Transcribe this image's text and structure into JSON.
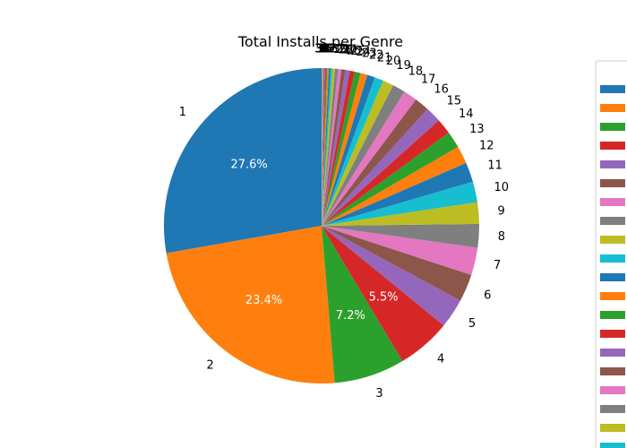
{
  "chart_data": {
    "type": "pie",
    "title": "Total Installs per Genre",
    "palette": [
      "#1f77b4",
      "#ff7f0e",
      "#2ca02c",
      "#d62728",
      "#9467bd",
      "#8c564b",
      "#e377c2",
      "#7f7f7f",
      "#bcbd22",
      "#17becf"
    ],
    "start_angle_deg": 90,
    "counterclockwise": true,
    "legend_location": "right",
    "slices": [
      {
        "label": "1",
        "percent": 27.6,
        "display": "27.6%"
      },
      {
        "label": "2",
        "percent": 23.4,
        "display": "23.4%"
      },
      {
        "label": "3",
        "percent": 7.2,
        "display": "7.2%"
      },
      {
        "label": "4",
        "percent": 5.5,
        "display": "5.5%"
      },
      {
        "label": "5",
        "percent": 3.0
      },
      {
        "label": "6",
        "percent": 2.8
      },
      {
        "label": "7",
        "percent": 2.8
      },
      {
        "label": "8",
        "percent": 2.4
      },
      {
        "label": "9",
        "percent": 2.2
      },
      {
        "label": "10",
        "percent": 2.1
      },
      {
        "label": "11",
        "percent": 2.0
      },
      {
        "label": "12",
        "percent": 1.8
      },
      {
        "label": "13",
        "percent": 1.7
      },
      {
        "label": "14",
        "percent": 1.6
      },
      {
        "label": "15",
        "percent": 1.6
      },
      {
        "label": "16",
        "percent": 1.5
      },
      {
        "label": "17",
        "percent": 1.4
      },
      {
        "label": "18",
        "percent": 1.3
      },
      {
        "label": "19",
        "percent": 1.1
      },
      {
        "label": "20",
        "percent": 0.9
      },
      {
        "label": "21",
        "percent": 0.8
      },
      {
        "label": "22",
        "percent": 0.7
      },
      {
        "label": "23",
        "percent": 0.6
      },
      {
        "label": "24",
        "percent": 0.5
      },
      {
        "label": "25",
        "percent": 0.45
      },
      {
        "label": "26",
        "percent": 0.4
      },
      {
        "label": "27",
        "percent": 0.35
      },
      {
        "label": "28",
        "percent": 0.3
      },
      {
        "label": "29",
        "percent": 0.25
      },
      {
        "label": "30",
        "percent": 0.2
      },
      {
        "label": "31",
        "percent": 0.18
      },
      {
        "label": "32",
        "percent": 0.15
      },
      {
        "label": "33",
        "percent": 0.12
      },
      {
        "label": "34",
        "percent": 0.1
      },
      {
        "label": "35",
        "percent": 0.09
      },
      {
        "label": "36",
        "percent": 0.08
      },
      {
        "label": "37",
        "percent": 0.07
      },
      {
        "label": "38",
        "percent": 0.06
      },
      {
        "label": "39",
        "percent": 0.05
      }
    ]
  }
}
